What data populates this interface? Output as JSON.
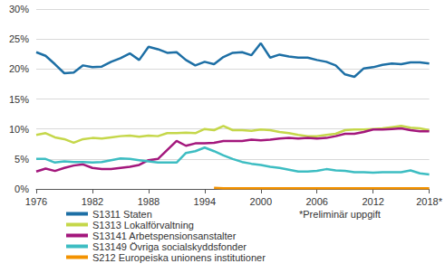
{
  "chart_data": {
    "type": "line",
    "categories": [
      "1976",
      null,
      null,
      null,
      null,
      null,
      "1982",
      null,
      null,
      null,
      null,
      null,
      "1988",
      null,
      null,
      null,
      null,
      null,
      "1994",
      null,
      null,
      null,
      null,
      null,
      "2000",
      null,
      null,
      null,
      null,
      null,
      "2006",
      null,
      null,
      null,
      null,
      null,
      "2012",
      null,
      null,
      null,
      null,
      null,
      "2018*"
    ],
    "series": [
      {
        "name": "S1311 Staten",
        "color": "#1d6fa5",
        "values": [
          22.8,
          22.2,
          20.8,
          19.3,
          19.4,
          20.6,
          20.3,
          20.4,
          21.2,
          21.8,
          22.6,
          21.5,
          23.7,
          23.3,
          22.7,
          22.8,
          21.5,
          20.6,
          21.2,
          20.8,
          22.0,
          22.7,
          22.8,
          22.3,
          24.3,
          21.9,
          22.4,
          22.1,
          21.9,
          21.9,
          21.5,
          21.2,
          20.6,
          19.1,
          18.7,
          20.1,
          20.3,
          20.7,
          20.9,
          20.8,
          21.1,
          21.1,
          20.9
        ]
      },
      {
        "name": "S1313 Lokalförvaltning",
        "color": "#c5d74a",
        "values": [
          9.0,
          9.3,
          8.6,
          8.3,
          7.7,
          8.3,
          8.5,
          8.4,
          8.6,
          8.8,
          8.9,
          8.7,
          8.9,
          8.8,
          9.3,
          9.3,
          9.4,
          9.3,
          10.0,
          9.8,
          10.5,
          9.8,
          9.8,
          9.7,
          9.9,
          9.8,
          9.5,
          9.3,
          9.0,
          8.8,
          8.8,
          9.0,
          9.2,
          9.8,
          9.9,
          9.9,
          10.0,
          10.1,
          10.3,
          10.5,
          10.2,
          10.1,
          9.8
        ]
      },
      {
        "name": "S13141 Arbetspensionsanstalter",
        "color": "#a3177c",
        "values": [
          2.9,
          3.4,
          3.0,
          3.5,
          3.9,
          4.1,
          3.5,
          3.3,
          3.3,
          3.5,
          3.7,
          4.0,
          4.8,
          5.0,
          6.5,
          8.0,
          7.2,
          7.6,
          7.6,
          7.7,
          8.0,
          8.0,
          8.0,
          8.2,
          8.1,
          8.2,
          8.4,
          8.5,
          8.4,
          8.5,
          8.4,
          8.5,
          8.8,
          9.2,
          9.2,
          9.5,
          9.9,
          9.9,
          10.0,
          10.1,
          9.8,
          9.6,
          9.6
        ]
      },
      {
        "name": "S13149 Övriga socialskyddsfonder",
        "color": "#3dbdc2",
        "values": [
          5.0,
          5.0,
          4.4,
          4.6,
          4.5,
          4.5,
          4.4,
          4.5,
          4.8,
          5.1,
          5.0,
          4.8,
          4.6,
          4.4,
          4.4,
          4.4,
          6.0,
          6.3,
          6.9,
          6.3,
          5.6,
          5.0,
          4.5,
          4.2,
          4.0,
          3.7,
          3.5,
          3.2,
          2.9,
          2.9,
          3.0,
          3.3,
          3.1,
          3.0,
          2.8,
          2.8,
          2.7,
          2.8,
          2.8,
          2.8,
          3.1,
          2.6,
          2.4
        ]
      },
      {
        "name": "S212 Europeiska unionens institutioner",
        "color": "#f39200",
        "values": [
          null,
          null,
          null,
          null,
          null,
          null,
          null,
          null,
          null,
          null,
          null,
          null,
          null,
          null,
          null,
          null,
          null,
          null,
          null,
          0.2,
          0.1,
          0.1,
          0.1,
          0.1,
          0.1,
          0.1,
          0.1,
          0.1,
          0.1,
          0.1,
          0.1,
          0.1,
          0.1,
          0.1,
          0.1,
          0.1,
          0.1,
          0.1,
          0.1,
          0.1,
          0.1,
          0.1,
          0.1
        ]
      }
    ],
    "ylim": [
      0,
      30
    ],
    "yticks": [
      {
        "value": 0,
        "label": "0%"
      },
      {
        "value": 5,
        "label": "5%"
      },
      {
        "value": 10,
        "label": "10%"
      },
      {
        "value": 15,
        "label": "15%"
      },
      {
        "value": 20,
        "label": "20%"
      },
      {
        "value": 25,
        "label": "25%"
      },
      {
        "value": 30,
        "label": "30%"
      }
    ],
    "grid": true,
    "legend": "bottom",
    "annotations": [
      "*Preliminär uppgift"
    ]
  }
}
